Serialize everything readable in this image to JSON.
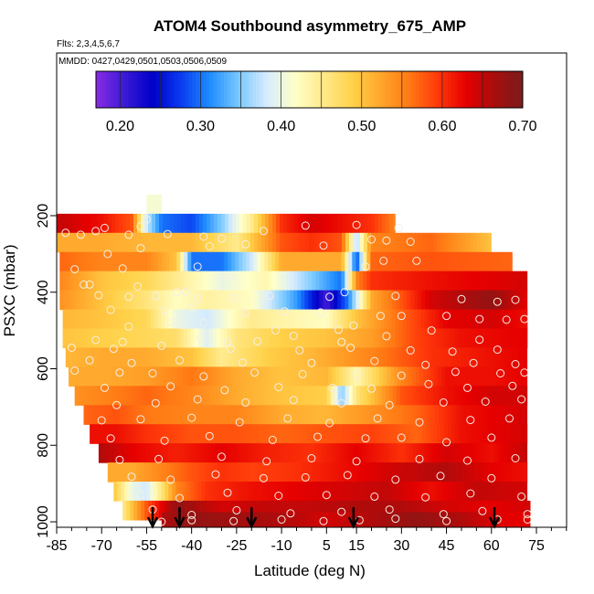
{
  "chart_data": {
    "type": "heatmap",
    "title": "ATOM4 Southbound asymmetry_675_AMP",
    "subtitle_flights": "Flts: 2,3,4,5,6,7",
    "subtitle_dates": "MMDD: 0427,0429,0501,0503,0506,0509",
    "xlabel": "Latitude (deg N)",
    "ylabel": "PSXC (mbar)",
    "xlim": [
      -85,
      85
    ],
    "ylim": [
      1000,
      0
    ],
    "x_ticks": [
      -85,
      -70,
      -55,
      -40,
      -25,
      -10,
      5,
      15,
      30,
      45,
      60,
      75
    ],
    "y_ticks": [
      200,
      400,
      600,
      800,
      1000
    ],
    "colorbar": {
      "min": 0.17,
      "max": 0.7,
      "ticks": [
        0.2,
        0.3,
        0.4,
        0.5,
        0.6,
        0.7
      ],
      "tick_labels": [
        "0.20",
        "0.30",
        "0.40",
        "0.50",
        "0.60",
        "0.70"
      ],
      "colors": [
        "#8a2be2",
        "#3a1ad6",
        "#0000c8",
        "#0a3cf0",
        "#1e8cff",
        "#78c8ff",
        "#d6ecff",
        "#ffffc8",
        "#ffe98a",
        "#ffd24a",
        "#ffa62b",
        "#ff7a14",
        "#ff3a0a",
        "#e60000",
        "#a80d0d",
        "#7a1c1c"
      ]
    },
    "arrows_latitude": [
      -53,
      -44,
      -20,
      14,
      61
    ],
    "levels": [
      {
        "p": 170,
        "lat": [
          -55,
          -50
        ],
        "v": [
          0.41,
          0.41
        ],
        "low": [
          {
            "lat": -52,
            "v": 0.39,
            "w": 6
          }
        ]
      },
      {
        "p": 220,
        "lat": [
          -85,
          -70,
          -60,
          -55,
          -50,
          -40,
          -30,
          -20,
          -10,
          0,
          10,
          20,
          28
        ],
        "v": [
          0.65,
          0.62,
          0.58,
          0.38,
          0.3,
          0.28,
          0.35,
          0.45,
          0.6,
          0.64,
          0.62,
          0.6,
          0.55
        ]
      },
      {
        "p": 270,
        "lat": [
          -85,
          -70,
          -55,
          -40,
          -25,
          -10,
          0,
          10,
          15,
          20,
          40,
          60
        ],
        "v": [
          0.52,
          0.52,
          0.51,
          0.51,
          0.45,
          0.58,
          0.6,
          0.58,
          0.36,
          0.55,
          0.57,
          0.5
        ]
      },
      {
        "p": 320,
        "lat": [
          -84,
          -70,
          -55,
          -45,
          -40,
          -30,
          -20,
          -10,
          0,
          10,
          15,
          20,
          40,
          67
        ],
        "v": [
          0.57,
          0.55,
          0.55,
          0.5,
          0.3,
          0.3,
          0.38,
          0.52,
          0.52,
          0.52,
          0.28,
          0.57,
          0.58,
          0.57
        ]
      },
      {
        "p": 370,
        "lat": [
          -84,
          -70,
          -55,
          -45,
          -30,
          -15,
          0,
          10,
          15,
          20,
          40,
          72
        ],
        "v": [
          0.55,
          0.5,
          0.48,
          0.45,
          0.4,
          0.43,
          0.35,
          0.3,
          0.55,
          0.6,
          0.62,
          0.64
        ]
      },
      {
        "p": 420,
        "lat": [
          -84,
          -70,
          -55,
          -45,
          -35,
          -20,
          -5,
          5,
          12,
          20,
          40,
          60,
          72
        ],
        "v": [
          0.54,
          0.5,
          0.46,
          0.42,
          0.44,
          0.42,
          0.32,
          0.2,
          0.3,
          0.52,
          0.64,
          0.68,
          0.63
        ]
      },
      {
        "p": 470,
        "lat": [
          -83,
          -70,
          -55,
          -45,
          -35,
          -20,
          -5,
          5,
          15,
          30,
          45,
          60,
          72
        ],
        "v": [
          0.51,
          0.5,
          0.48,
          0.4,
          0.38,
          0.45,
          0.43,
          0.42,
          0.5,
          0.57,
          0.63,
          0.64,
          0.62
        ]
      },
      {
        "p": 520,
        "lat": [
          -83,
          -70,
          -55,
          -45,
          -35,
          -25,
          -10,
          5,
          20,
          35,
          50,
          72
        ],
        "v": [
          0.5,
          0.49,
          0.48,
          0.47,
          0.39,
          0.46,
          0.49,
          0.5,
          0.53,
          0.59,
          0.62,
          0.63
        ]
      },
      {
        "p": 570,
        "lat": [
          -82,
          -70,
          -55,
          -40,
          -30,
          -15,
          0,
          20,
          40,
          60,
          72
        ],
        "v": [
          0.51,
          0.52,
          0.52,
          0.5,
          0.45,
          0.49,
          0.51,
          0.55,
          0.6,
          0.62,
          0.63
        ]
      },
      {
        "p": 620,
        "lat": [
          -81,
          -70,
          -55,
          -40,
          -25,
          -10,
          5,
          15,
          30,
          45,
          60,
          72
        ],
        "v": [
          0.52,
          0.52,
          0.53,
          0.56,
          0.52,
          0.5,
          0.51,
          0.43,
          0.55,
          0.62,
          0.62,
          0.63
        ]
      },
      {
        "p": 670,
        "lat": [
          -79,
          -70,
          -55,
          -40,
          -25,
          -10,
          5,
          10,
          15,
          30,
          45,
          60,
          72
        ],
        "v": [
          0.54,
          0.55,
          0.57,
          0.55,
          0.52,
          0.5,
          0.49,
          0.35,
          0.46,
          0.58,
          0.62,
          0.64,
          0.64
        ]
      },
      {
        "p": 720,
        "lat": [
          -76,
          -65,
          -55,
          -40,
          -25,
          -10,
          5,
          20,
          35,
          50,
          72
        ],
        "v": [
          0.57,
          0.58,
          0.56,
          0.55,
          0.55,
          0.52,
          0.51,
          0.54,
          0.57,
          0.62,
          0.64
        ]
      },
      {
        "p": 770,
        "lat": [
          -74,
          -65,
          -55,
          -40,
          -25,
          -10,
          5,
          20,
          35,
          50,
          72
        ],
        "v": [
          0.62,
          0.62,
          0.6,
          0.58,
          0.58,
          0.57,
          0.58,
          0.59,
          0.57,
          0.62,
          0.64
        ]
      },
      {
        "p": 820,
        "lat": [
          -71,
          -60,
          -45,
          -30,
          -15,
          0,
          15,
          30,
          45,
          60,
          72
        ],
        "v": [
          0.66,
          0.63,
          0.61,
          0.63,
          0.61,
          0.6,
          0.63,
          0.6,
          0.64,
          0.62,
          0.65
        ]
      },
      {
        "p": 870,
        "lat": [
          -68,
          -60,
          -50,
          -40,
          -30,
          -20,
          -5,
          10,
          25,
          45,
          60,
          72
        ],
        "v": [
          0.52,
          0.52,
          0.55,
          0.58,
          0.6,
          0.59,
          0.6,
          0.62,
          0.64,
          0.66,
          0.63,
          0.62
        ]
      },
      {
        "p": 920,
        "lat": [
          -66,
          -60,
          -55,
          -50,
          -45,
          -35,
          -20,
          -5,
          10,
          25,
          40,
          55,
          72
        ],
        "v": [
          0.5,
          0.4,
          0.38,
          0.46,
          0.55,
          0.6,
          0.62,
          0.63,
          0.64,
          0.65,
          0.62,
          0.65,
          0.64
        ]
      },
      {
        "p": 970,
        "lat": [
          -63,
          -55,
          -45,
          -30,
          -15,
          0,
          15,
          30,
          45,
          60,
          73
        ],
        "v": [
          0.45,
          0.58,
          0.68,
          0.64,
          0.65,
          0.65,
          0.66,
          0.66,
          0.64,
          0.63,
          0.64
        ]
      },
      {
        "p": 1000,
        "lat": [
          -50,
          -40,
          -25,
          -10,
          5,
          20,
          35,
          50,
          65,
          73
        ],
        "v": [
          0.66,
          0.68,
          0.67,
          0.66,
          0.64,
          0.66,
          0.68,
          0.66,
          0.63,
          0.63
        ]
      }
    ],
    "points": [
      [
        -82,
        245
      ],
      [
        -77,
        250
      ],
      [
        -72,
        240
      ],
      [
        -69,
        232
      ],
      [
        -61,
        250
      ],
      [
        -57,
        228
      ],
      [
        -55,
        210
      ],
      [
        -48,
        248
      ],
      [
        -36,
        255
      ],
      [
        -30,
        260
      ],
      [
        -16,
        240
      ],
      [
        -2,
        226
      ],
      [
        15,
        224
      ],
      [
        29,
        232
      ],
      [
        -68,
        300
      ],
      [
        -57,
        285
      ],
      [
        -34,
        280
      ],
      [
        -22,
        275
      ],
      [
        4,
        278
      ],
      [
        20,
        262
      ],
      [
        25,
        265
      ],
      [
        33,
        268
      ],
      [
        -79,
        340
      ],
      [
        -63,
        338
      ],
      [
        -38,
        333
      ],
      [
        -27,
        360
      ],
      [
        18,
        333
      ],
      [
        24,
        318
      ],
      [
        35,
        318
      ],
      [
        -76,
        380
      ],
      [
        -74,
        380
      ],
      [
        -58,
        385
      ],
      [
        -45,
        400
      ],
      [
        -42,
        398
      ],
      [
        11,
        400
      ],
      [
        -71,
        408
      ],
      [
        -61,
        412
      ],
      [
        -52,
        410
      ],
      [
        -38,
        417
      ],
      [
        -26,
        415
      ],
      [
        -14,
        410
      ],
      [
        6,
        412
      ],
      [
        28,
        410
      ],
      [
        50,
        418
      ],
      [
        62,
        425
      ],
      [
        68,
        420
      ],
      [
        -67,
        446
      ],
      [
        -49,
        448
      ],
      [
        -40,
        440
      ],
      [
        -22,
        454
      ],
      [
        -9,
        450
      ],
      [
        3,
        453
      ],
      [
        23,
        462
      ],
      [
        30,
        462
      ],
      [
        45,
        462
      ],
      [
        56,
        470
      ],
      [
        -61,
        490
      ],
      [
        -47,
        478
      ],
      [
        -43,
        486
      ],
      [
        -36,
        480
      ],
      [
        -12,
        500
      ],
      [
        9,
        498
      ],
      [
        14,
        487
      ],
      [
        40,
        500
      ],
      [
        65,
        472
      ],
      [
        71,
        470
      ],
      [
        -72,
        525
      ],
      [
        -63,
        530
      ],
      [
        -37,
        520
      ],
      [
        -28,
        530
      ],
      [
        -18,
        528
      ],
      [
        -6,
        514
      ],
      [
        10,
        530
      ],
      [
        25,
        515
      ],
      [
        56,
        524
      ],
      [
        -80,
        545
      ],
      [
        -66,
        548
      ],
      [
        -50,
        540
      ],
      [
        -27,
        548
      ],
      [
        -4,
        552
      ],
      [
        13,
        545
      ],
      [
        33,
        552
      ],
      [
        47,
        555
      ],
      [
        62,
        550
      ],
      [
        -74,
        578
      ],
      [
        -60,
        585
      ],
      [
        -44,
        578
      ],
      [
        -23,
        584
      ],
      [
        0,
        585
      ],
      [
        21,
        580
      ],
      [
        38,
        590
      ],
      [
        54,
        585
      ],
      [
        68,
        588
      ],
      [
        -79,
        605
      ],
      [
        -64,
        610
      ],
      [
        -53,
        612
      ],
      [
        -36,
        620
      ],
      [
        -19,
        610
      ],
      [
        -3,
        614
      ],
      [
        15,
        616
      ],
      [
        30,
        618
      ],
      [
        48,
        608
      ],
      [
        63,
        612
      ],
      [
        71,
        610
      ],
      [
        -69,
        650
      ],
      [
        -47,
        646
      ],
      [
        -29,
        656
      ],
      [
        -11,
        648
      ],
      [
        7,
        650
      ],
      [
        20,
        652
      ],
      [
        39,
        640
      ],
      [
        52,
        650
      ],
      [
        67,
        645
      ],
      [
        -65,
        695
      ],
      [
        -52,
        690
      ],
      [
        -38,
        680
      ],
      [
        -22,
        688
      ],
      [
        -6,
        682
      ],
      [
        10,
        690
      ],
      [
        26,
        695
      ],
      [
        44,
        688
      ],
      [
        58,
        686
      ],
      [
        70,
        680
      ],
      [
        -70,
        735
      ],
      [
        -57,
        732
      ],
      [
        -40,
        728
      ],
      [
        -24,
        740
      ],
      [
        -8,
        730
      ],
      [
        6,
        742
      ],
      [
        22,
        730
      ],
      [
        36,
        740
      ],
      [
        53,
        734
      ],
      [
        66,
        730
      ],
      [
        -67,
        782
      ],
      [
        -49,
        788
      ],
      [
        -34,
        776
      ],
      [
        -13,
        786
      ],
      [
        2,
        778
      ],
      [
        18,
        782
      ],
      [
        30,
        780
      ],
      [
        45,
        792
      ],
      [
        60,
        780
      ],
      [
        -64,
        838
      ],
      [
        -51,
        836
      ],
      [
        -30,
        830
      ],
      [
        -15,
        842
      ],
      [
        0,
        834
      ],
      [
        15,
        842
      ],
      [
        36,
        836
      ],
      [
        52,
        840
      ],
      [
        68,
        834
      ],
      [
        -60,
        882
      ],
      [
        -47,
        890
      ],
      [
        -32,
        876
      ],
      [
        -16,
        886
      ],
      [
        -2,
        884
      ],
      [
        12,
        878
      ],
      [
        28,
        890
      ],
      [
        43,
        880
      ],
      [
        60,
        886
      ],
      [
        -57,
        930
      ],
      [
        -44,
        938
      ],
      [
        -28,
        924
      ],
      [
        -11,
        932
      ],
      [
        5,
        930
      ],
      [
        21,
        934
      ],
      [
        38,
        936
      ],
      [
        53,
        926
      ],
      [
        70,
        934
      ],
      [
        -53,
        968
      ],
      [
        -40,
        982
      ],
      [
        -25,
        970
      ],
      [
        -7,
        978
      ],
      [
        10,
        974
      ],
      [
        26,
        968
      ],
      [
        44,
        980
      ],
      [
        57,
        972
      ],
      [
        72,
        980
      ],
      [
        -50,
        1000
      ],
      [
        -40,
        996
      ],
      [
        -26,
        998
      ],
      [
        -10,
        994
      ],
      [
        4,
        998
      ],
      [
        16,
        996
      ],
      [
        28,
        992
      ],
      [
        45,
        998
      ],
      [
        62,
        994
      ],
      [
        72,
        994
      ]
    ]
  }
}
